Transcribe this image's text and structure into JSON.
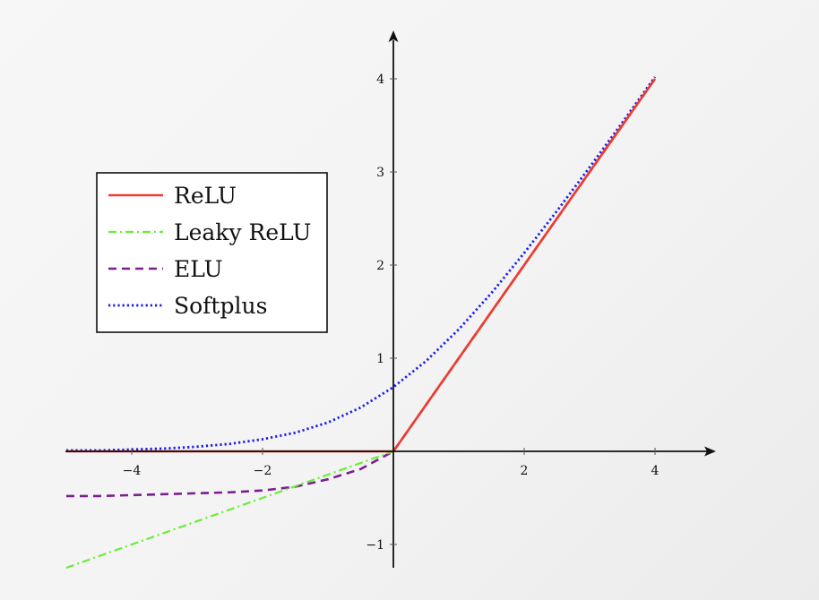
{
  "chart_data": {
    "type": "line",
    "title": "",
    "xlabel": "",
    "ylabel": "",
    "xlim": [
      -5,
      5
    ],
    "ylim": [
      -1.25,
      4.5
    ],
    "x_ticks": [
      -4,
      -2,
      2,
      4
    ],
    "x_tick_labels": [
      "−4",
      "−2",
      "2",
      "4"
    ],
    "y_ticks": [
      -1,
      1,
      2,
      3,
      4
    ],
    "y_tick_labels": [
      "−1",
      "1",
      "2",
      "3",
      "4"
    ],
    "grid": false,
    "legend_position": "left",
    "x": [
      -5,
      -4.5,
      -4,
      -3.5,
      -3,
      -2.5,
      -2,
      -1.5,
      -1,
      -0.5,
      0,
      0.5,
      1,
      1.5,
      2,
      2.5,
      3,
      3.5,
      4
    ],
    "series": [
      {
        "name": "ReLU",
        "color": "#f03a2e",
        "style": "solid",
        "values": [
          0,
          0,
          0,
          0,
          0,
          0,
          0,
          0,
          0,
          0,
          0,
          0.5,
          1,
          1.5,
          2,
          2.5,
          3,
          3.5,
          4
        ]
      },
      {
        "name": "Leaky ReLU",
        "color": "#66ee33",
        "style": "dashdot",
        "values": [
          -1.25,
          -1.125,
          -1.0,
          -0.875,
          -0.75,
          -0.625,
          -0.5,
          -0.375,
          -0.25,
          -0.125,
          0,
          0.5,
          1,
          1.5,
          2,
          2.5,
          3,
          3.5,
          4
        ]
      },
      {
        "name": "ELU",
        "color": "#7b1f8e",
        "style": "dashed",
        "values": [
          -0.48,
          -0.48,
          -0.47,
          -0.46,
          -0.45,
          -0.44,
          -0.42,
          -0.38,
          -0.3,
          -0.19,
          0,
          0.5,
          1,
          1.5,
          2,
          2.5,
          3,
          3.5,
          4
        ]
      },
      {
        "name": "Softplus",
        "color": "#1a1aee",
        "style": "dotted",
        "values": [
          0.01,
          0.01,
          0.02,
          0.03,
          0.05,
          0.08,
          0.13,
          0.2,
          0.31,
          0.47,
          0.69,
          0.97,
          1.31,
          1.7,
          2.13,
          2.58,
          3.05,
          3.53,
          4.02
        ]
      }
    ]
  }
}
